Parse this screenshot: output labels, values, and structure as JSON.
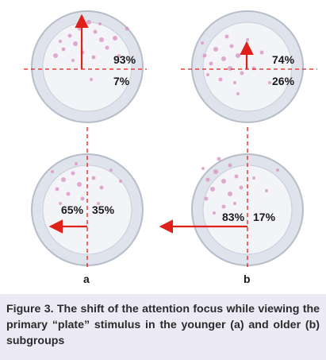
{
  "figure": {
    "panels": [
      {
        "id": "a-top",
        "upper_pct": "93%",
        "lower_pct": "7%"
      },
      {
        "id": "b-top",
        "upper_pct": "74%",
        "lower_pct": "26%"
      },
      {
        "id": "a-bottom",
        "left_pct": "65%",
        "right_pct": "35%"
      },
      {
        "id": "b-bottom",
        "left_pct": "83%",
        "right_pct": "17%"
      }
    ],
    "sublabel_a": "a",
    "sublabel_b": "b",
    "colors": {
      "plate_fill": "#eef0f5",
      "plate_ring": "#c9cdd8",
      "dot": "#d98fc0",
      "arrow": "#e0201b",
      "guide_line": "#e0201b",
      "caption_bg": "#eceaf4"
    }
  },
  "caption": "Figure 3. The shift of the attention focus while viewing the primary “plate” stimulus in the younger (a) and older (b) subgroups"
}
